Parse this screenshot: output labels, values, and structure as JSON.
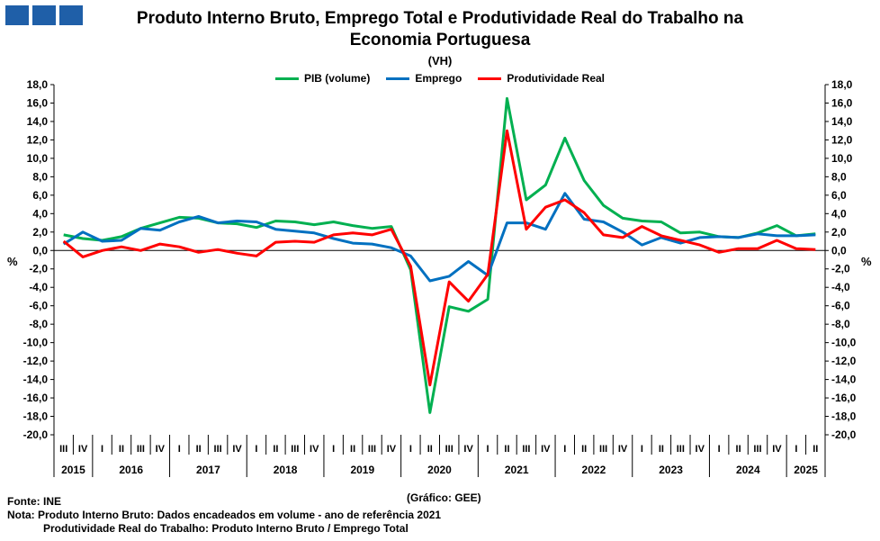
{
  "logo_icon": "ine-logo-icon",
  "title_line1": "Produto Interno Bruto, Emprego Total e Produtividade Real do Trabalho na",
  "title_line2": "Economia Portuguesa",
  "subtitle": "(VH)",
  "footer": {
    "source": "Fonte: INE",
    "note1": "Nota: Produto Interno Bruto: Dados encadeados em volume - ano de referência 2021",
    "note2": "Produtividade Real do Trabalho: Produto Interno Bruto / Emprego Total",
    "credit": "(Gráfico: GEE)"
  },
  "chart_data": {
    "type": "line",
    "ylabel": "%",
    "ylim": [
      -20,
      18
    ],
    "yticks": [
      "18,0",
      "16,0",
      "14,0",
      "12,0",
      "10,0",
      "8,0",
      "6,0",
      "4,0",
      "2,0",
      "0,0",
      "-2,0",
      "-4,0",
      "-6,0",
      "-8,0",
      "-10,0",
      "-12,0",
      "-14,0",
      "-16,0",
      "-18,0",
      "-20,0"
    ],
    "categories": [
      "III",
      "IV",
      "I",
      "II",
      "III",
      "IV",
      "I",
      "II",
      "III",
      "IV",
      "I",
      "II",
      "III",
      "IV",
      "I",
      "II",
      "III",
      "IV",
      "I",
      "II",
      "III",
      "IV",
      "I",
      "II",
      "III",
      "IV",
      "I",
      "II",
      "III",
      "IV",
      "I",
      "II",
      "III",
      "IV",
      "I",
      "II",
      "III",
      "IV",
      "I",
      "II"
    ],
    "years": [
      {
        "label": "2015",
        "count": 2
      },
      {
        "label": "2016",
        "count": 4
      },
      {
        "label": "2017",
        "count": 4
      },
      {
        "label": "2018",
        "count": 4
      },
      {
        "label": "2019",
        "count": 4
      },
      {
        "label": "2020",
        "count": 4
      },
      {
        "label": "2021",
        "count": 4
      },
      {
        "label": "2022",
        "count": 4
      },
      {
        "label": "2023",
        "count": 4
      },
      {
        "label": "2024",
        "count": 4
      },
      {
        "label": "2025",
        "count": 2
      }
    ],
    "series": [
      {
        "name": "PIB (volume)",
        "color": "#00b050",
        "values": [
          1.7,
          1.3,
          1.1,
          1.5,
          2.4,
          3.0,
          3.6,
          3.5,
          3.0,
          2.9,
          2.5,
          3.2,
          3.1,
          2.8,
          3.1,
          2.7,
          2.4,
          2.6,
          -2.1,
          -17.6,
          -6.1,
          -6.6,
          -5.3,
          16.5,
          5.5,
          7.1,
          12.2,
          7.6,
          4.9,
          3.5,
          3.2,
          3.1,
          1.9,
          2.0,
          1.5,
          1.4,
          1.9,
          2.7,
          1.6,
          1.8
        ]
      },
      {
        "name": "Emprego",
        "color": "#0070c0",
        "values": [
          0.7,
          2.0,
          1.0,
          1.1,
          2.4,
          2.2,
          3.1,
          3.7,
          3.0,
          3.2,
          3.1,
          2.3,
          2.1,
          1.9,
          1.3,
          0.8,
          0.7,
          0.3,
          -0.6,
          -3.3,
          -2.8,
          -1.2,
          -2.7,
          3.0,
          3.0,
          2.3,
          6.2,
          3.4,
          3.1,
          2.0,
          0.6,
          1.4,
          0.8,
          1.4,
          1.5,
          1.4,
          1.8,
          1.6,
          1.6,
          1.7
        ]
      },
      {
        "name": "Produtividade Real",
        "color": "#ff0000",
        "values": [
          1.0,
          -0.7,
          0.0,
          0.4,
          0.0,
          0.7,
          0.4,
          -0.2,
          0.1,
          -0.3,
          -0.6,
          0.9,
          1.0,
          0.9,
          1.7,
          1.9,
          1.7,
          2.3,
          -1.7,
          -14.6,
          -3.4,
          -5.5,
          -2.6,
          13.0,
          2.3,
          4.7,
          5.5,
          4.1,
          1.7,
          1.4,
          2.6,
          1.6,
          1.1,
          0.6,
          -0.2,
          0.2,
          0.2,
          1.1,
          0.2,
          0.1
        ]
      }
    ]
  }
}
